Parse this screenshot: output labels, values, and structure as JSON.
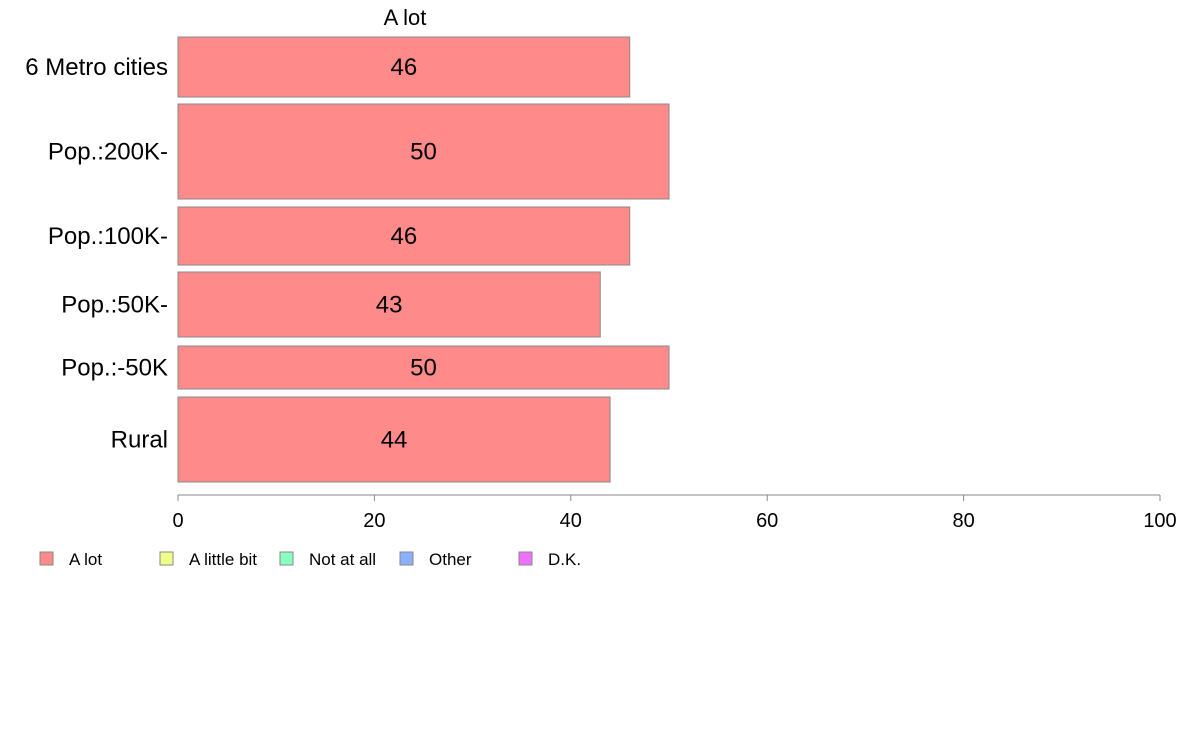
{
  "chart_data": {
    "type": "bar",
    "orientation": "horizontal",
    "column_title": "A lot",
    "categories": [
      "6 Metro cities",
      "Pop.:200K-",
      "Pop.:100K-",
      "Pop.:50K-",
      "Pop.:-50K",
      "Rural"
    ],
    "series": [
      {
        "name": "A lot",
        "values": [
          46,
          50,
          46,
          43,
          50,
          44
        ]
      }
    ],
    "data_labels": [
      "46",
      "50",
      "46",
      "43",
      "50",
      "44"
    ],
    "xlim": [
      0,
      100
    ],
    "x_ticks": [
      "0",
      "20",
      "40",
      "60",
      "80",
      "100"
    ],
    "grid": false,
    "legend_position": "bottom-left",
    "legend": [
      {
        "label": "A lot",
        "color": "#ff8a8a"
      },
      {
        "label": "A little bit",
        "color": "#eeff8a"
      },
      {
        "label": "Not at all",
        "color": "#8affc0"
      },
      {
        "label": "Other",
        "color": "#8ab0ff"
      },
      {
        "label": "D.K.",
        "color": "#ee70ff"
      }
    ],
    "bar_color": "#ff8a8a",
    "bar_stroke": "#888888"
  }
}
